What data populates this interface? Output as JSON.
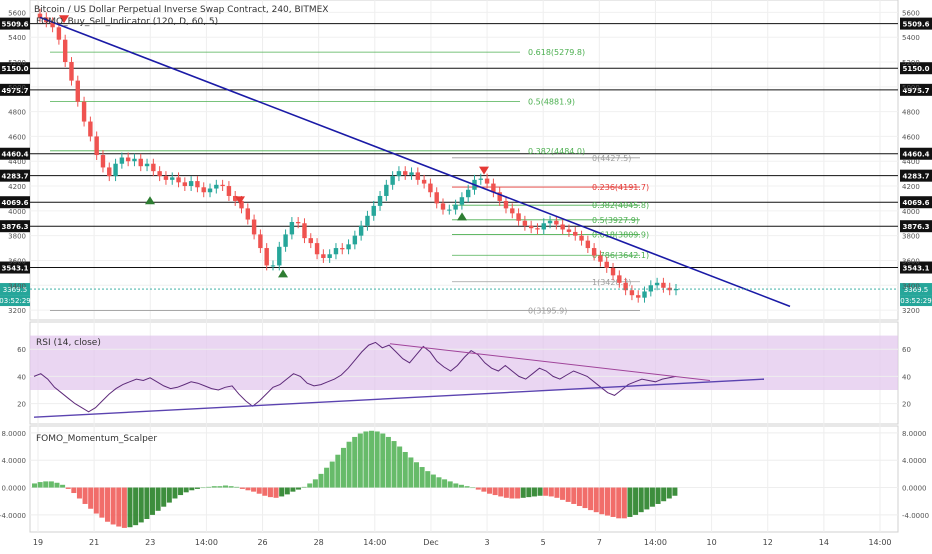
{
  "header": {
    "title": "Bitcoin / US Dollar Perpetual Inverse Swap Contract, 240, BITMEX",
    "indicator": "FOMO_Buy_Sell_Indicator (120, D, 60, 5)"
  },
  "colors": {
    "up": "#26a69a",
    "down": "#ef5350",
    "trendline": "#1a1aa6",
    "fib_green": "#4caf50",
    "fib_red": "#e53935",
    "fib_grey": "#9e9e9e",
    "rsi_line": "#5e2b7a",
    "rsi_band": "#e1c5ec",
    "momentum_pos": "#4caf50",
    "momentum_neg": "#ef5350",
    "momentum_pos_strong": "#1b7a1b"
  },
  "chart_data": [
    {
      "type": "candlestick",
      "title": "Bitcoin / US Dollar Perpetual Inverse Swap Contract, 240, BITMEX",
      "ylim": [
        3120,
        5700
      ],
      "y_ticks": [
        3200,
        3400,
        3600,
        3800,
        4000,
        4200,
        4400,
        4600,
        4800,
        5000,
        5200,
        5400,
        5600
      ],
      "x_ticks": [
        "19",
        "21",
        "23",
        "14:00",
        "26",
        "28",
        "14:00",
        "Dec",
        "3",
        "5",
        "7",
        "14:00",
        "10",
        "12",
        "14",
        "14:00"
      ],
      "price_labels": [
        {
          "value": 5509.6,
          "label": "5509.6"
        },
        {
          "value": 5150.0,
          "label": "5150.0"
        },
        {
          "value": 4975.7,
          "label": "4975.7"
        },
        {
          "value": 4460.4,
          "label": "4460.4"
        },
        {
          "value": 4283.7,
          "label": "4283.7"
        },
        {
          "value": 4069.6,
          "label": "4069.6"
        },
        {
          "value": 3876.3,
          "label": "3876.3"
        },
        {
          "value": 3543.1,
          "label": "3543.1"
        }
      ],
      "current_price": "3369.5",
      "countdown": "03:52:29",
      "fib_levels_left": [
        {
          "label": "0.618(5279.8)",
          "value": 5279.8
        },
        {
          "label": "0.5(4881.9)",
          "value": 4881.9
        },
        {
          "label": "0.382(4484.0)",
          "value": 4484.0
        }
      ],
      "fib_levels_right": [
        {
          "label": "0(4427.5)",
          "value": 4427.5
        },
        {
          "label": "0.236(4191.7)",
          "value": 4191.7
        },
        {
          "label": "0.382(4045.8)",
          "value": 4045.8
        },
        {
          "label": "0.5(3927.9)",
          "value": 3927.9
        },
        {
          "label": "0.618(3809.9)",
          "value": 3809.9
        },
        {
          "label": "0.786(3642.1)",
          "value": 3642.1
        },
        {
          "label": "1(3428.3)",
          "value": 3428.3
        },
        {
          "label": "0(3195.9)",
          "value": 3195.9
        }
      ],
      "closes": [
        5560,
        5520,
        5480,
        5380,
        5200,
        5050,
        4880,
        4720,
        4600,
        4450,
        4350,
        4280,
        4380,
        4430,
        4400,
        4420,
        4360,
        4380,
        4320,
        4280,
        4250,
        4270,
        4230,
        4200,
        4240,
        4190,
        4150,
        4180,
        4210,
        4200,
        4120,
        4080,
        4020,
        3930,
        3810,
        3700,
        3560,
        3560,
        3710,
        3810,
        3910,
        3900,
        3780,
        3740,
        3650,
        3620,
        3650,
        3700,
        3690,
        3730,
        3800,
        3880,
        3960,
        4040,
        4120,
        4210,
        4280,
        4320,
        4290,
        4310,
        4250,
        4220,
        4150,
        4060,
        4010,
        4010,
        4050,
        4110,
        4170,
        4250,
        4260,
        4220,
        4150,
        4080,
        4020,
        3980,
        3920,
        3880,
        3860,
        3850,
        3900,
        3920,
        3890,
        3850,
        3830,
        3800,
        3760,
        3700,
        3640,
        3590,
        3540,
        3480,
        3420,
        3360,
        3320,
        3300,
        3350,
        3400,
        3420,
        3380,
        3360,
        3370
      ],
      "trendline": [
        {
          "date": "19",
          "value": 5560
        },
        {
          "date": "11",
          "value": 3230
        }
      ],
      "signals": [
        {
          "type": "sell",
          "value": 5480
        },
        {
          "type": "buy",
          "value": 4150
        },
        {
          "type": "sell",
          "value": 4020
        },
        {
          "type": "buy",
          "value": 3560
        },
        {
          "type": "buy",
          "value": 4020
        },
        {
          "type": "sell",
          "value": 4260
        }
      ]
    },
    {
      "type": "line",
      "title": "RSI (14, close)",
      "ylim": [
        5,
        80
      ],
      "y_ticks": [
        20,
        40,
        60
      ],
      "band": [
        30,
        70
      ],
      "values": [
        40,
        42,
        38,
        32,
        28,
        24,
        20,
        17,
        14,
        17,
        22,
        27,
        31,
        34,
        36,
        38,
        37,
        39,
        36,
        33,
        31,
        32,
        34,
        36,
        35,
        33,
        31,
        30,
        32,
        33,
        27,
        22,
        18,
        22,
        27,
        32,
        34,
        38,
        42,
        40,
        35,
        33,
        34,
        36,
        38,
        41,
        46,
        52,
        58,
        63,
        65,
        61,
        63,
        58,
        53,
        50,
        56,
        62,
        58,
        51,
        47,
        44,
        48,
        54,
        59,
        56,
        50,
        46,
        44,
        48,
        44,
        40,
        38,
        42,
        46,
        44,
        40,
        38,
        41,
        44,
        42,
        40,
        36,
        32,
        28,
        26,
        30,
        34,
        36,
        38,
        37,
        36,
        38,
        39,
        40
      ]
    },
    {
      "type": "bar",
      "title": "FOMO_Momentum_Scalper",
      "ylim": [
        -6.5,
        9
      ],
      "y_ticks": [
        -4.0,
        0.0,
        4.0,
        8.0
      ],
      "values": [
        0.6,
        0.8,
        0.9,
        0.9,
        0.7,
        0.4,
        -0.2,
        -0.8,
        -1.6,
        -2.4,
        -3.1,
        -3.8,
        -4.4,
        -5.0,
        -5.4,
        -5.7,
        -5.9,
        -5.8,
        -5.5,
        -5.1,
        -4.6,
        -4.0,
        -3.4,
        -2.8,
        -2.2,
        -1.6,
        -1.1,
        -0.7,
        -0.4,
        -0.2,
        0.0,
        0.1,
        0.2,
        0.2,
        0.3,
        0.2,
        0.1,
        -0.2,
        -0.4,
        -0.6,
        -0.9,
        -1.2,
        -1.4,
        -1.5,
        -1.3,
        -1.0,
        -0.6,
        -0.3,
        0.1,
        0.6,
        1.2,
        2.0,
        2.9,
        3.8,
        4.8,
        5.8,
        6.7,
        7.4,
        7.9,
        8.2,
        8.3,
        8.2,
        7.9,
        7.4,
        6.8,
        6.0,
        5.2,
        4.4,
        3.7,
        3.0,
        2.4,
        1.9,
        1.5,
        1.2,
        0.9,
        0.6,
        0.4,
        0.2,
        0.0,
        -0.3,
        -0.6,
        -0.9,
        -1.1,
        -1.3,
        -1.5,
        -1.6,
        -1.6,
        -1.5,
        -1.4,
        -1.3,
        -1.2,
        -1.2,
        -1.3,
        -1.5,
        -1.8,
        -2.1,
        -2.4,
        -2.7,
        -3.0,
        -3.3,
        -3.6,
        -3.9,
        -4.1,
        -4.3,
        -4.5,
        -4.5,
        -4.3,
        -4.0,
        -3.6,
        -3.2,
        -2.8,
        -2.4,
        -2.0,
        -1.6,
        -1.2
      ]
    }
  ]
}
